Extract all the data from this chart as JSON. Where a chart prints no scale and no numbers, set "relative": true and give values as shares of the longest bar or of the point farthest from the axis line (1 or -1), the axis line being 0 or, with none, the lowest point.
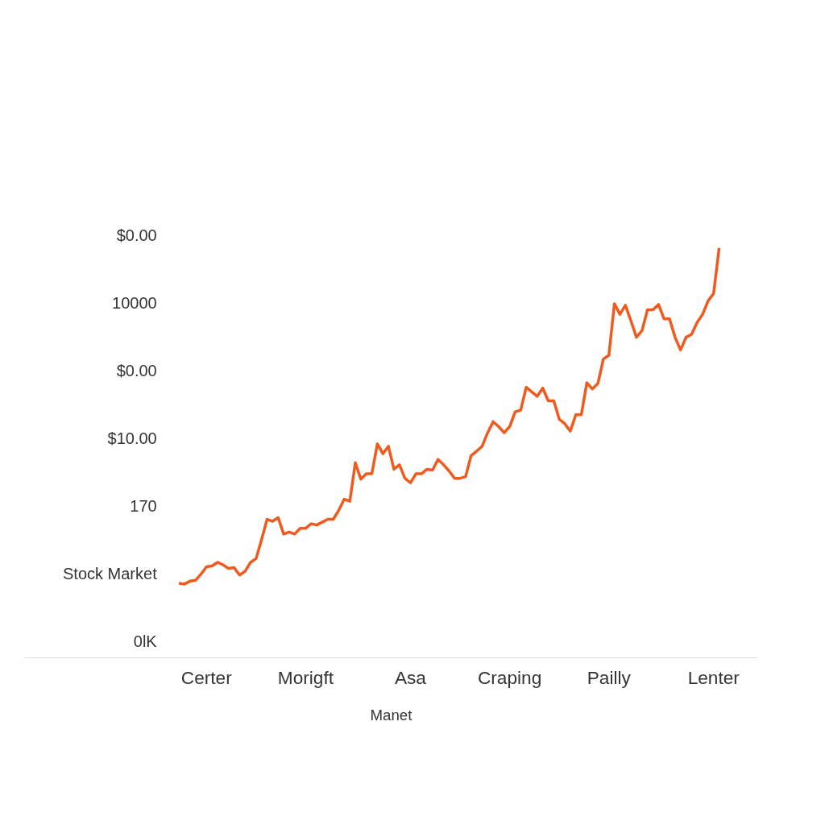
{
  "chart_data": {
    "type": "line",
    "relative": true,
    "xlabel": "Manet",
    "categories": [
      null,
      null,
      null,
      null,
      null,
      "Certer",
      null,
      null,
      null,
      null,
      null,
      null,
      null,
      null,
      null,
      null,
      null,
      null,
      null,
      null,
      null,
      null,
      null,
      "Morigft",
      null,
      null,
      null,
      null,
      null,
      null,
      null,
      null,
      null,
      null,
      null,
      null,
      null,
      null,
      null,
      null,
      null,
      null,
      "Asa",
      null,
      null,
      null,
      null,
      null,
      null,
      null,
      null,
      null,
      null,
      null,
      null,
      null,
      null,
      null,
      null,
      null,
      "Craping",
      null,
      null,
      null,
      null,
      null,
      null,
      null,
      null,
      null,
      null,
      null,
      null,
      null,
      null,
      null,
      null,
      null,
      "Pailly",
      null,
      null,
      null,
      null,
      null,
      null,
      null,
      null,
      null,
      null,
      null,
      null,
      null,
      null,
      null,
      null,
      null,
      null,
      "Lenter",
      null
    ],
    "annotations": [
      "$0.00",
      "10000",
      "$0.00",
      "$10.00",
      "170",
      "Stock Market",
      "0lK"
    ],
    "grid": false,
    "marker": "none",
    "line_style": "solid",
    "series": [
      {
        "color": "#f05a1e",
        "values": [
          0.182,
          0.18,
          0.187,
          0.189,
          0.204,
          0.222,
          0.224,
          0.233,
          0.227,
          0.218,
          0.22,
          0.202,
          0.211,
          0.233,
          0.242,
          0.289,
          0.338,
          0.333,
          0.342,
          0.302,
          0.307,
          0.302,
          0.316,
          0.316,
          0.327,
          0.324,
          0.331,
          0.338,
          0.338,
          0.36,
          0.387,
          0.382,
          0.476,
          0.436,
          0.449,
          0.449,
          0.522,
          0.498,
          0.516,
          0.46,
          0.471,
          0.438,
          0.427,
          0.449,
          0.449,
          0.46,
          0.458,
          0.484,
          0.471,
          0.456,
          0.438,
          0.438,
          0.442,
          0.493,
          0.504,
          0.516,
          0.549,
          0.576,
          0.564,
          0.549,
          0.564,
          0.6,
          0.604,
          0.66,
          0.649,
          0.638,
          0.658,
          0.627,
          0.627,
          0.582,
          0.571,
          0.553,
          0.593,
          0.593,
          0.671,
          0.656,
          0.669,
          0.729,
          0.738,
          0.864,
          0.838,
          0.86,
          0.822,
          0.782,
          0.798,
          0.849,
          0.849,
          0.862,
          0.827,
          0.827,
          0.782,
          0.751,
          0.782,
          0.789,
          0.818,
          0.838,
          0.871,
          0.889,
          1.0
        ]
      }
    ]
  }
}
